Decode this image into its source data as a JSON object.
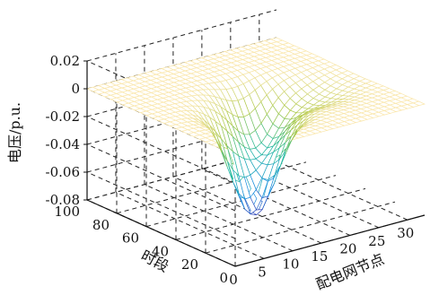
{
  "chart_data": {
    "type": "surface3d",
    "zlabel": "电压/p.u.",
    "ylabel": "时段",
    "xlabel": "配电网节点",
    "zlim": [
      -0.08,
      0.02
    ],
    "ylim": [
      0,
      100
    ],
    "xlim": [
      0,
      33
    ],
    "z_ticks": [
      "0.02",
      "0",
      "-0.02",
      "-0.04",
      "-0.06",
      "-0.08"
    ],
    "y_ticks": [
      "100",
      "80",
      "60",
      "40",
      "20",
      "0"
    ],
    "x_ticks": [
      "0",
      "5",
      "10",
      "15",
      "20",
      "25",
      "30"
    ],
    "grid": true,
    "colormap": "parula",
    "surface_note_points": [
      {
        "node": 0,
        "period": 0,
        "voltage": 0
      },
      {
        "node": 33,
        "period": 100,
        "voltage": 0
      },
      {
        "node": 12,
        "period": 40,
        "voltage": -0.075
      },
      {
        "node": 15,
        "period": 35,
        "voltage": -0.07
      },
      {
        "node": 18,
        "period": 50,
        "voltage": -0.05
      },
      {
        "node": 22,
        "period": 45,
        "voltage": -0.01
      }
    ]
  }
}
